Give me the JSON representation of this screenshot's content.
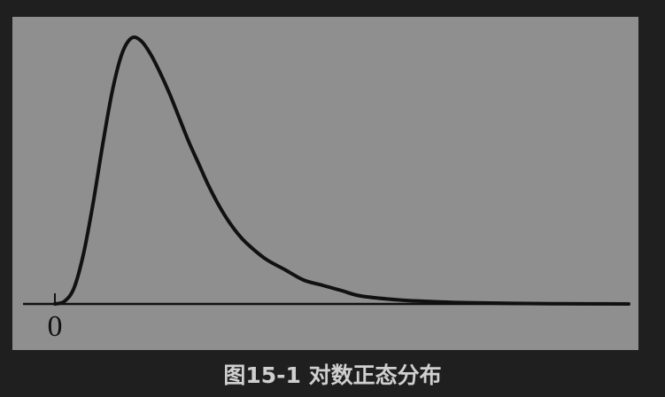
{
  "chart_data": {
    "type": "line",
    "title": "",
    "xlabel": "",
    "ylabel": "",
    "x_ticks": [
      "0"
    ],
    "xlim": [
      -0.16,
      3.0
    ],
    "ylim": [
      0,
      1
    ],
    "grid": false,
    "legend": "none",
    "series": [
      {
        "x": [
          0,
          0.05,
          0.1,
          0.15,
          0.2,
          0.25,
          0.3,
          0.35,
          0.4,
          0.45,
          0.5,
          0.55,
          0.6,
          0.65,
          0.7,
          0.75,
          0.8,
          0.85,
          0.9,
          0.95,
          1.0,
          1.1,
          1.2,
          1.3,
          1.4,
          1.5,
          1.6,
          1.8,
          2.0,
          2.2,
          2.4,
          2.6,
          2.8,
          3.0
        ],
        "y": [
          0,
          0.01,
          0.06,
          0.19,
          0.38,
          0.6,
          0.8,
          0.94,
          1.0,
          0.99,
          0.94,
          0.87,
          0.79,
          0.7,
          0.61,
          0.53,
          0.45,
          0.38,
          0.32,
          0.27,
          0.23,
          0.17,
          0.13,
          0.09,
          0.07,
          0.05,
          0.03,
          0.015,
          0.008,
          0.004,
          0.002,
          0.001,
          0.0005,
          0.0002
        ]
      }
    ]
  },
  "caption": "图15-1 对数正态分布",
  "colors": {
    "background": "#1f1f1f",
    "plot_area": "#8f8f8f",
    "curve": "#111111",
    "caption_text": "#cfcfcf"
  }
}
